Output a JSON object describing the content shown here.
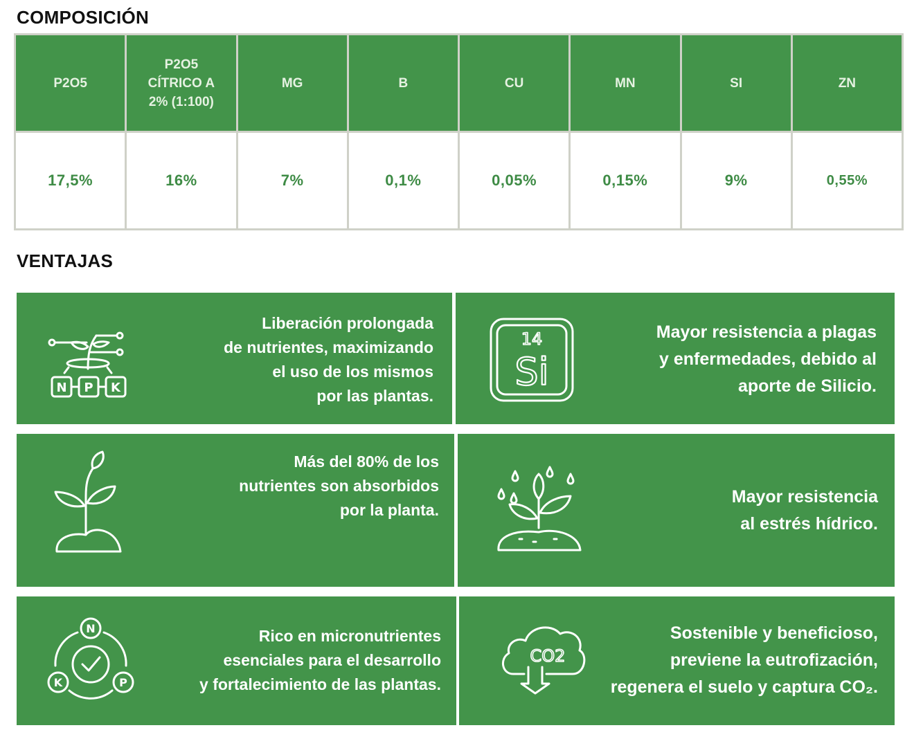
{
  "composition": {
    "title": "COMPOSICIÓN",
    "headers": [
      "P2O5",
      "P2O5\nCÍTRICO A\n2% (1:100)",
      "MG",
      "B",
      "CU",
      "MN",
      "SI",
      "ZN"
    ],
    "values": [
      "17,5%",
      "16%",
      "7%",
      "0,1%",
      "0,05%",
      "0,15%",
      "9%",
      "0,55%"
    ]
  },
  "advantages": {
    "title": "VENTAJAS",
    "items": [
      {
        "icon": "npk-plant-icon",
        "text": "Liberación prolongada\nde nutrientes, maximizando\nel uso de los mismos\npor las plantas."
      },
      {
        "icon": "silicon-element-icon",
        "icon_number": "14",
        "icon_symbol": "Si",
        "text": "Mayor resistencia a plagas\ny enfermedades, debido al\naporte de Silicio."
      },
      {
        "icon": "sprout-icon",
        "text": "Más del 80% de los\nnutrientes son absorbidos\npor la planta."
      },
      {
        "icon": "watered-plant-icon",
        "text": "Mayor resistencia\nal estrés hídrico."
      },
      {
        "icon": "npk-cycle-check-icon",
        "icon_letters": [
          "N",
          "K",
          "P"
        ],
        "text": "Rico en micronutrientes\nesenciales para el desarrollo\ny fortalecimiento de las plantas."
      },
      {
        "icon": "co2-cloud-icon",
        "icon_label": "CO2",
        "text": "Sostenible y beneficioso,\npreviene la eutrofización,\nregenera el suelo y captura CO₂."
      }
    ]
  },
  "colors": {
    "green": "#43944a",
    "border": "#cfd1c8",
    "value_text": "#3e8b45"
  }
}
